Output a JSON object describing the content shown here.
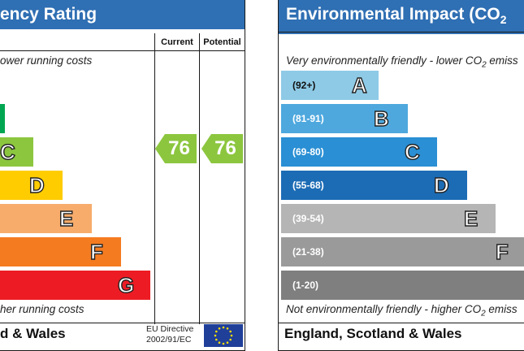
{
  "energy": {
    "title": "ency Rating",
    "col_current": "Current",
    "col_potential": "Potential",
    "top_note": "ower running costs",
    "bottom_note": "her running costs",
    "footer": "d & Wales",
    "eu_line1": "EU Directive",
    "eu_line2": "2002/91/EC",
    "current_value": "76",
    "potential_value": "76",
    "arrow_color": "#8cc63f",
    "bands": [
      {
        "letter": "",
        "color": "#00a651"
      },
      {
        "letter": "C",
        "color": "#8cc63f"
      },
      {
        "letter": "D",
        "color": "#ffcc00"
      },
      {
        "letter": "E",
        "color": "#f7ac6b"
      },
      {
        "letter": "F",
        "color": "#f47b20"
      },
      {
        "letter": "G",
        "color": "#ed1c24"
      }
    ]
  },
  "environmental": {
    "title": "Environmental Impact (CO",
    "title_sub": "2",
    "top_note": "Very environmentally friendly - lower CO",
    "top_note_sub": "2",
    "top_note_end": " emiss",
    "bottom_note": "Not environmentally friendly - higher CO",
    "bottom_note_sub": "2",
    "bottom_note_end": " emiss",
    "footer": "England, Scotland & Wales",
    "bands": [
      {
        "range": "(92+)",
        "letter": "A",
        "color": "#8ecae6"
      },
      {
        "range": "(81-91)",
        "letter": "B",
        "color": "#4ea8de"
      },
      {
        "range": "(69-80)",
        "letter": "C",
        "color": "#2a8fd4"
      },
      {
        "range": "(55-68)",
        "letter": "D",
        "color": "#1c6cb5"
      },
      {
        "range": "(39-54)",
        "letter": "E",
        "color": "#b5b5b5"
      },
      {
        "range": "(21-38)",
        "letter": "F",
        "color": "#9a9a9a"
      },
      {
        "range": "(1-20)",
        "letter": "G",
        "color": "#7f7f7f"
      }
    ]
  }
}
